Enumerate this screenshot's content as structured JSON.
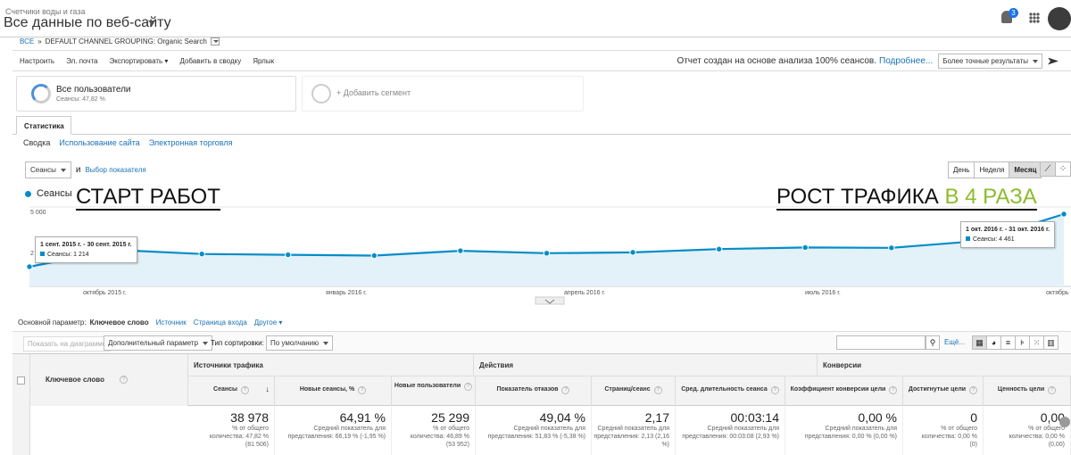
{
  "header": {
    "property": "Счетчики воды и газа",
    "view": "Все данные по веб-сайту",
    "notif_count": "3"
  },
  "breadcrumb": {
    "root": "ВСЕ",
    "sep": "»",
    "path": "DEFAULT CHANNEL GROUPING: Organic Search"
  },
  "toolbar": {
    "items": [
      "Настроить",
      "Эл. почта",
      "Экспортировать",
      "Добавить в сводку",
      "Ярлык"
    ],
    "report_note": "Отчет создан на основе анализа 100% сеансов.",
    "more_link": "Подробнее...",
    "precision": "Более точные результаты"
  },
  "segments": {
    "all_users": "Все пользователи",
    "all_users_sub": "Сеансы: 47,82 %",
    "add": "+ Добавить сегмент"
  },
  "tab": "Статистика",
  "subtabs": [
    "Сводка",
    "Использование сайта",
    "Электронная торговля"
  ],
  "chart_controls": {
    "metric": "Сеансы",
    "and": "и",
    "choose": "Выбор показателя",
    "periods": [
      "День",
      "Неделя",
      "Месяц"
    ],
    "active_period": "Месяц"
  },
  "chart_legend": "Сеансы",
  "annotations": {
    "start": "СТАРТ РАБОТ",
    "growth_a": "РОСТ ТРАФИКА ",
    "growth_b": "В 4 РАЗА"
  },
  "tooltips": {
    "left_title": "1 сент. 2015 г. - 30 сент. 2015 г.",
    "left_value": "Сеансы: 1 214",
    "right_title": "1 окт. 2016 г. - 31 окт. 2016 г.",
    "right_value": "Сеансы: 4 461"
  },
  "chart_data": {
    "type": "area",
    "series": [
      {
        "name": "Сеансы",
        "values": [
          1214,
          2250,
          2000,
          1950,
          1900,
          2200,
          2050,
          2100,
          2300,
          2400,
          2380,
          2800,
          4461
        ]
      }
    ],
    "y_ticks": [
      "5 000",
      "2"
    ],
    "ylim": [
      0,
      5000
    ],
    "x_ticks": [
      "октябрь 2015 г.",
      "январь 2016 г.",
      "апрель 2016 г.",
      "июль 2016 г.",
      "октябрь"
    ]
  },
  "dimension": {
    "label": "Основной параметр:",
    "items": [
      "Ключевое слово",
      "Источник",
      "Страница входа",
      "Другое"
    ]
  },
  "table_controls": {
    "plot": "Показать на диаграмме",
    "secondary": "Дополнительный параметр",
    "sort_label": "Тип сортировки:",
    "sort": "По умолчанию",
    "more": "Ещё..."
  },
  "table": {
    "key_col": "Ключевое слово",
    "groups": [
      "Источники трафика",
      "Действия",
      "Конверсии"
    ],
    "columns": [
      "Сеансы",
      "Новые сеансы, %",
      "Новые пользователи",
      "Показатель отказов",
      "Страниц/сеанс",
      "Сред. длительность сеанса",
      "Коэффициент конверсии цели",
      "Достигнутые цели",
      "Ценность цели"
    ],
    "totals": [
      "38 978",
      "64,91 %",
      "25 299",
      "49,04 %",
      "2,17",
      "00:03:14",
      "0,00 %",
      "0",
      "0,00"
    ],
    "subs": [
      [
        "% от общего",
        "количества: 47,82 %",
        "(81 506)"
      ],
      [
        "Средний показатель для",
        "представления: 66,19 % (-1,95 %)",
        ""
      ],
      [
        "% от общего",
        "количества: 46,89 %",
        "(53 952)"
      ],
      [
        "Средний показатель для",
        "представления: 51,83 % (-5,38 %)",
        ""
      ],
      [
        "Средний показатель для",
        "представления: 2,13 (2,16 %)",
        ""
      ],
      [
        "Средний показатель для",
        "представления: 00:03:08 (2,93 %)",
        ""
      ],
      [
        "Средний показатель для",
        "представления: 0,00 % (0,00 %)",
        ""
      ],
      [
        "% от общего",
        "количества: 0,00 %",
        "(0)"
      ],
      [
        "% от общего",
        "количества: 0,00 %",
        "(0,00)"
      ]
    ]
  }
}
